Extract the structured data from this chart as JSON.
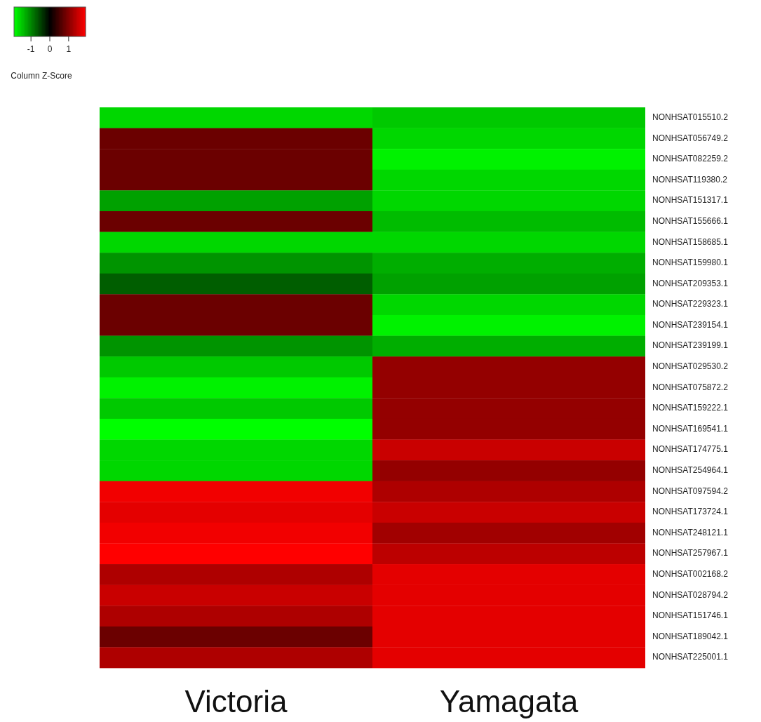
{
  "chart_data": {
    "type": "heatmap",
    "clabel": "Column Z-Score",
    "categories": [
      "Victoria",
      "Yamagata"
    ],
    "y_categories": [
      "NONHSAT015510.2",
      "NONHSAT056749.2",
      "NONHSAT082259.2",
      "NONHSAT119380.2",
      "NONHSAT151317.1",
      "NONHSAT155666.1",
      "NONHSAT158685.1",
      "NONHSAT159980.1",
      "NONHSAT209353.1",
      "NONHSAT229323.1",
      "NONHSAT239154.1",
      "NONHSAT239199.1",
      "NONHSAT029530.2",
      "NONHSAT075872.2",
      "NONHSAT159222.1",
      "NONHSAT169541.1",
      "NONHSAT174775.1",
      "NONHSAT254964.1",
      "NONHSAT097594.2",
      "NONHSAT173724.1",
      "NONHSAT248121.1",
      "NONHSAT257967.1",
      "NONHSAT002168.2",
      "NONHSAT028794.2",
      "NONHSAT151746.1",
      "NONHSAT189042.1",
      "NONHSAT225001.1"
    ],
    "cells": [
      [
        -1.6,
        -1.5
      ],
      [
        0.8,
        -1.6
      ],
      [
        0.8,
        -1.8
      ],
      [
        0.8,
        -1.6
      ],
      [
        -1.2,
        -1.6
      ],
      [
        0.8,
        -1.4
      ],
      [
        -1.6,
        -1.6
      ],
      [
        -1.1,
        -1.3
      ],
      [
        -0.7,
        -1.2
      ],
      [
        0.8,
        -1.6
      ],
      [
        0.8,
        -1.8
      ],
      [
        -1.1,
        -1.3
      ],
      [
        -1.5,
        1.1
      ],
      [
        -1.8,
        1.1
      ],
      [
        -1.5,
        1.1
      ],
      [
        -1.9,
        1.1
      ],
      [
        -1.6,
        1.5
      ],
      [
        -1.6,
        1.1
      ],
      [
        1.8,
        1.3
      ],
      [
        1.7,
        1.5
      ],
      [
        1.8,
        1.2
      ],
      [
        1.9,
        1.4
      ],
      [
        1.3,
        1.7
      ],
      [
        1.5,
        1.7
      ],
      [
        1.3,
        1.7
      ],
      [
        0.8,
        1.7
      ],
      [
        1.3,
        1.7
      ]
    ],
    "clim": [
      -1.9,
      1.9
    ],
    "cticks": [
      -1,
      0,
      1
    ]
  }
}
